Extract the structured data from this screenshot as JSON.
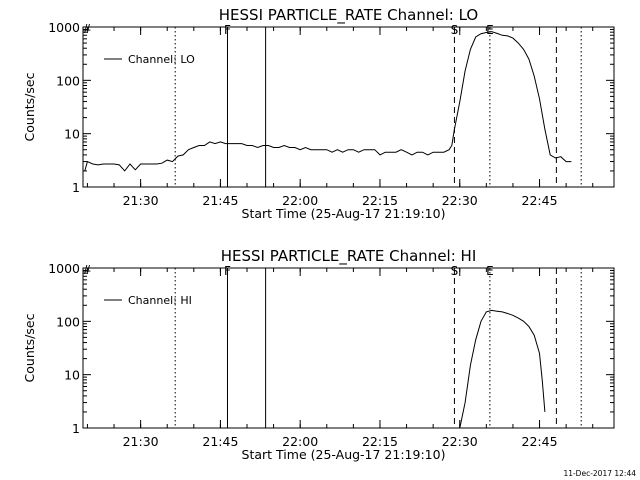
{
  "footer": {
    "timestamp": "11-Dec-2017 12:44"
  },
  "chart_data": [
    {
      "type": "line",
      "title": "HESSI PARTICLE_RATE Channel: LO",
      "xlabel": "Start Time (25-Aug-17 21:19:10)",
      "ylabel": "Counts/sec",
      "y_scale": "log",
      "ylim": [
        1,
        1000
      ],
      "xlim": [
        "21:19:10",
        "22:59:00"
      ],
      "x_ticks": [
        "21:30",
        "21:45",
        "22:00",
        "22:15",
        "22:30",
        "22:45"
      ],
      "y_ticks": [
        "1",
        "10",
        "100",
        "1000"
      ],
      "legend": {
        "entries": [
          "Channel: LO"
        ],
        "position": "top-left"
      },
      "markers": [
        {
          "label": "F",
          "time": "21:46:20",
          "style": "solid"
        },
        {
          "label": "",
          "time": "21:53:30",
          "style": "solid"
        },
        {
          "label": "S",
          "time": "22:29:00",
          "style": "dashed"
        },
        {
          "label": "E",
          "time": "22:35:40",
          "style": "dotted"
        },
        {
          "label": "",
          "time": "21:36:30",
          "style": "dotted"
        },
        {
          "label": "",
          "time": "22:48:10",
          "style": "dashed"
        },
        {
          "label": "",
          "time": "22:52:50",
          "style": "dotted"
        }
      ],
      "series": [
        {
          "name": "Channel: LO",
          "x": [
            "21:19:30",
            "21:20:00",
            "21:21:00",
            "21:22:00",
            "21:23:00",
            "21:24:00",
            "21:25:00",
            "21:26:00",
            "21:27:00",
            "21:28:00",
            "21:29:00",
            "21:30:00",
            "21:31:00",
            "21:32:00",
            "21:33:00",
            "21:34:00",
            "21:35:00",
            "21:36:00",
            "21:37:00",
            "21:38:00",
            "21:39:00",
            "21:40:00",
            "21:41:00",
            "21:42:00",
            "21:43:00",
            "21:44:00",
            "21:45:00",
            "21:46:00",
            "21:47:00",
            "21:48:00",
            "21:49:00",
            "21:50:00",
            "21:51:00",
            "21:52:00",
            "21:53:00",
            "21:54:00",
            "21:55:00",
            "21:56:00",
            "21:57:00",
            "21:58:00",
            "21:59:00",
            "22:00:00",
            "22:01:00",
            "22:02:00",
            "22:03:00",
            "22:04:00",
            "22:05:00",
            "22:06:00",
            "22:07:00",
            "22:08:00",
            "22:09:00",
            "22:10:00",
            "22:11:00",
            "22:12:00",
            "22:13:00",
            "22:14:00",
            "22:15:00",
            "22:16:00",
            "22:17:00",
            "22:18:00",
            "22:19:00",
            "22:20:00",
            "22:21:00",
            "22:22:00",
            "22:23:00",
            "22:24:00",
            "22:25:00",
            "22:26:00",
            "22:27:00",
            "22:28:00",
            "22:28:30",
            "22:29:00",
            "22:30:00",
            "22:31:00",
            "22:32:00",
            "22:33:00",
            "22:34:00",
            "22:35:00",
            "22:36:00",
            "22:37:00",
            "22:38:00",
            "22:39:00",
            "22:40:00",
            "22:41:00",
            "22:42:00",
            "22:43:00",
            "22:44:00",
            "22:45:00",
            "22:46:00",
            "22:47:00",
            "22:48:00",
            "22:49:00",
            "22:50:00",
            "22:51:00"
          ],
          "values": [
            2.0,
            3.0,
            2.7,
            2.6,
            2.7,
            2.7,
            2.7,
            2.6,
            2.0,
            2.7,
            2.1,
            2.7,
            2.7,
            2.7,
            2.7,
            2.8,
            3.2,
            3.0,
            3.8,
            4.0,
            5.0,
            5.5,
            6.0,
            6.0,
            7.0,
            6.5,
            7.0,
            6.5,
            6.5,
            6.5,
            6.5,
            6.0,
            6.0,
            5.5,
            6.0,
            6.0,
            5.5,
            5.5,
            6.0,
            5.5,
            5.5,
            5.0,
            5.5,
            5.0,
            5.0,
            5.0,
            5.0,
            4.5,
            5.0,
            4.5,
            5.0,
            5.0,
            4.5,
            5.0,
            5.0,
            5.0,
            4.0,
            4.5,
            4.5,
            4.5,
            5.0,
            4.5,
            4.0,
            4.5,
            4.5,
            4.0,
            4.5,
            4.5,
            4.5,
            5.0,
            6.0,
            12,
            40,
            150,
            380,
            650,
            750,
            790,
            820,
            760,
            700,
            680,
            620,
            500,
            380,
            250,
            120,
            45,
            12,
            4.0,
            3.5,
            3.7,
            3.0,
            3.0
          ]
        }
      ]
    },
    {
      "type": "line",
      "title": "HESSI PARTICLE_RATE Channel: HI",
      "xlabel": "Start Time (25-Aug-17 21:19:10)",
      "ylabel": "Counts/sec",
      "y_scale": "log",
      "ylim": [
        1,
        1000
      ],
      "xlim": [
        "21:19:10",
        "22:59:00"
      ],
      "x_ticks": [
        "21:30",
        "21:45",
        "22:00",
        "22:15",
        "22:30",
        "22:45"
      ],
      "y_ticks": [
        "1",
        "10",
        "100",
        "1000"
      ],
      "legend": {
        "entries": [
          "Channel: HI"
        ],
        "position": "top-left"
      },
      "markers": [
        {
          "label": "F",
          "time": "21:46:20",
          "style": "solid"
        },
        {
          "label": "",
          "time": "21:53:30",
          "style": "solid"
        },
        {
          "label": "S",
          "time": "22:29:00",
          "style": "dashed"
        },
        {
          "label": "E",
          "time": "22:35:40",
          "style": "dotted"
        },
        {
          "label": "",
          "time": "21:36:30",
          "style": "dotted"
        },
        {
          "label": "",
          "time": "22:48:10",
          "style": "dashed"
        },
        {
          "label": "",
          "time": "22:52:50",
          "style": "dotted"
        }
      ],
      "series": [
        {
          "name": "Channel: HI",
          "x": [
            "22:30:00",
            "22:31:00",
            "22:32:00",
            "22:33:00",
            "22:34:00",
            "22:35:00",
            "22:36:00",
            "22:37:00",
            "22:38:00",
            "22:39:00",
            "22:40:00",
            "22:41:00",
            "22:42:00",
            "22:43:00",
            "22:44:00",
            "22:45:00",
            "22:45:30",
            "22:46:00"
          ],
          "values": [
            1.0,
            3.0,
            15,
            45,
            100,
            150,
            160,
            155,
            150,
            140,
            130,
            115,
            100,
            80,
            55,
            25,
            8,
            2.0
          ]
        }
      ]
    }
  ]
}
